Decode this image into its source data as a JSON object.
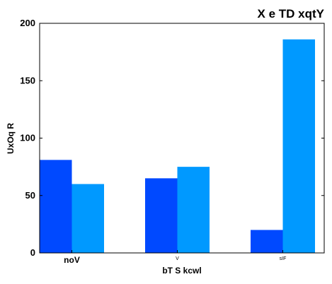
{
  "chart_data": {
    "type": "bar",
    "title": "X e TD xqtY",
    "xlabel": "bT  S kcwl",
    "ylabel": "UxOq  R",
    "categories": [
      "noV",
      "V",
      "sIF"
    ],
    "series": [
      {
        "values": [
          81,
          65,
          20
        ]
      },
      {
        "values": [
          60,
          75,
          186
        ]
      }
    ],
    "ylim": [
      0,
      200
    ],
    "yticks": [
      "0",
      "50",
      "100",
      "150",
      "200"
    ],
    "grid": false,
    "legend": "none",
    "colors": {
      "series_0": "#0049ff",
      "series_1": "#0099ff",
      "frame": "#000000"
    }
  }
}
